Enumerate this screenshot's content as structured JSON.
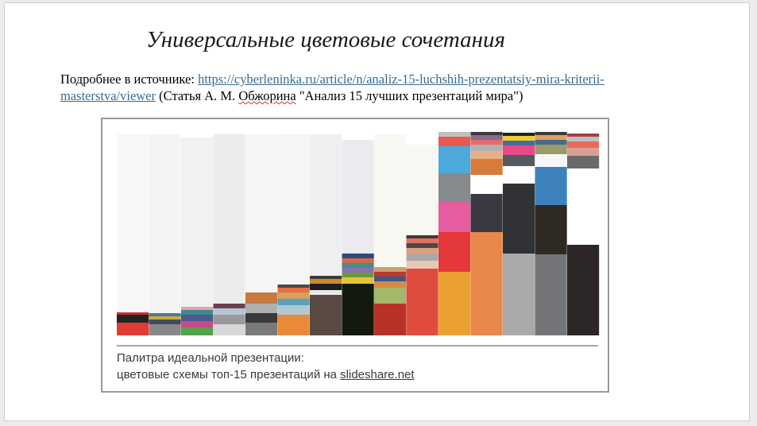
{
  "slide": {
    "title": "Универсальные цветовые сочетания",
    "source_prefix": "Подробнее в источнике: ",
    "source_link": "https://cyberleninka.ru/article/n/analiz-15-luchshih-prezentatsiy-mira-kriterii-masterstva/viewer",
    "source_suffix_a": " (Статья А. М. ",
    "source_author": "Обжорина",
    "source_suffix_b": " \"Анализ 15 лучших презентаций мира\")"
  },
  "figure": {
    "caption_line1": "Палитра идеальной презентации:",
    "caption_line2_prefix": "цветовые схемы топ-15 презентаций на ",
    "caption_line2_link": "slideshare.net"
  },
  "chart_data": {
    "type": "bar",
    "stacked": true,
    "note": "15 stacked colour palettes; each column lists colour bands from bottom to top with relative band heights",
    "columns": [
      {
        "bands": [
          {
            "color": "#e03c31",
            "h": 16
          },
          {
            "color": "#222222",
            "h": 10
          },
          {
            "color": "#c23030",
            "h": 3
          },
          {
            "color": "#f7f7f7",
            "h": 224
          }
        ]
      },
      {
        "bands": [
          {
            "color": "#888888",
            "h": 14
          },
          {
            "color": "#3f4b5a",
            "h": 6
          },
          {
            "color": "#d0a83a",
            "h": 4
          },
          {
            "color": "#4a7a9a",
            "h": 4
          },
          {
            "color": "#f4f4f4",
            "h": 225
          }
        ]
      },
      {
        "bands": [
          {
            "color": "#56a04a",
            "h": 10
          },
          {
            "color": "#c94a8a",
            "h": 8
          },
          {
            "color": "#4a5a8a",
            "h": 8
          },
          {
            "color": "#3e8a8a",
            "h": 6
          },
          {
            "color": "#e7a1b8",
            "h": 4
          },
          {
            "color": "#f1f1f1",
            "h": 213
          }
        ]
      },
      {
        "bands": [
          {
            "color": "#d8d8d8",
            "h": 14
          },
          {
            "color": "#9a9a9a",
            "h": 12
          },
          {
            "color": "#b7c4d4",
            "h": 8
          },
          {
            "color": "#6a4050",
            "h": 6
          },
          {
            "color": "#ececec",
            "h": 213
          }
        ]
      },
      {
        "bands": [
          {
            "color": "#7a7a7a",
            "h": 16
          },
          {
            "color": "#3a3a3a",
            "h": 12
          },
          {
            "color": "#b0b0b0",
            "h": 12
          },
          {
            "color": "#c47a40",
            "h": 14
          },
          {
            "color": "#f6f6f4",
            "h": 199
          }
        ]
      },
      {
        "bands": [
          {
            "color": "#e98a3a",
            "h": 26
          },
          {
            "color": "#b0c8d0",
            "h": 12
          },
          {
            "color": "#5aa0c0",
            "h": 8
          },
          {
            "color": "#d4a060",
            "h": 8
          },
          {
            "color": "#e46f3f",
            "h": 6
          },
          {
            "color": "#4a4a4a",
            "h": 4
          },
          {
            "color": "#f5f5f3",
            "h": 189
          }
        ]
      },
      {
        "bands": [
          {
            "color": "#5a4a44",
            "h": 51
          },
          {
            "color": "#e8e8e8",
            "h": 6
          },
          {
            "color": "#1d1d1d",
            "h": 8
          },
          {
            "color": "#c98a30",
            "h": 6
          },
          {
            "color": "#3a3a3a",
            "h": 4
          },
          {
            "color": "#efefef",
            "h": 178
          }
        ]
      },
      {
        "bands": [
          {
            "color": "#121a0e",
            "h": 65
          },
          {
            "color": "#e6c23a",
            "h": 8
          },
          {
            "color": "#6a9a3a",
            "h": 6
          },
          {
            "color": "#8a70b0",
            "h": 6
          },
          {
            "color": "#4a8a8a",
            "h": 6
          },
          {
            "color": "#d06a4a",
            "h": 6
          },
          {
            "color": "#2a4a7a",
            "h": 6
          },
          {
            "color": "#ebebef",
            "h": 143
          }
        ]
      },
      {
        "bands": [
          {
            "color": "#b83228",
            "h": 40
          },
          {
            "color": "#a3b86a",
            "h": 20
          },
          {
            "color": "#d88a4a",
            "h": 8
          },
          {
            "color": "#3a5a8a",
            "h": 6
          },
          {
            "color": "#b43c30",
            "h": 6
          },
          {
            "color": "#c8a070",
            "h": 6
          },
          {
            "color": "#f8f7f2",
            "h": 167
          }
        ]
      },
      {
        "bands": [
          {
            "color": "#e04c3e",
            "h": 84
          },
          {
            "color": "#e6c8b8",
            "h": 10
          },
          {
            "color": "#a8a8a8",
            "h": 8
          },
          {
            "color": "#d8a080",
            "h": 8
          },
          {
            "color": "#4a4a4a",
            "h": 6
          },
          {
            "color": "#e07060",
            "h": 6
          },
          {
            "color": "#3a3a3a",
            "h": 4
          },
          {
            "color": "#f8f7f2",
            "h": 114
          }
        ]
      },
      {
        "bands": [
          {
            "color": "#eba132",
            "h": 80
          },
          {
            "color": "#e4383b",
            "h": 50
          },
          {
            "color": "#e55c9f",
            "h": 38
          },
          {
            "color": "#868a8c",
            "h": 36
          },
          {
            "color": "#4ba9dc",
            "h": 34
          },
          {
            "color": "#e85a50",
            "h": 12
          },
          {
            "color": "#c0c0c0",
            "h": 6
          }
        ]
      },
      {
        "bands": [
          {
            "color": "#e8874a",
            "h": 130
          },
          {
            "color": "#3a3840",
            "h": 48
          },
          {
            "color": "#ffffff",
            "h": 24
          },
          {
            "color": "#d87a3a",
            "h": 20
          },
          {
            "color": "#e8b08a",
            "h": 10
          },
          {
            "color": "#b0b0b0",
            "h": 8
          },
          {
            "color": "#e86a6a",
            "h": 6
          },
          {
            "color": "#8a6a8a",
            "h": 6
          },
          {
            "color": "#3a3a3a",
            "h": 4
          }
        ]
      },
      {
        "bands": [
          {
            "color": "#aaaaaa",
            "h": 103
          },
          {
            "color": "#313236",
            "h": 88
          },
          {
            "color": "#ffffff",
            "h": 22
          },
          {
            "color": "#555a60",
            "h": 14
          },
          {
            "color": "#e84a88",
            "h": 12
          },
          {
            "color": "#4a6a9a",
            "h": 6
          },
          {
            "color": "#e8d03a",
            "h": 6
          },
          {
            "color": "#222222",
            "h": 4
          }
        ]
      },
      {
        "bands": [
          {
            "color": "#747578",
            "h": 102
          },
          {
            "color": "#2f2923",
            "h": 62
          },
          {
            "color": "#3d82bd",
            "h": 48
          },
          {
            "color": "#f7f7f7",
            "h": 16
          },
          {
            "color": "#9a9a6a",
            "h": 12
          },
          {
            "color": "#4a6a8a",
            "h": 6
          },
          {
            "color": "#e0a060",
            "h": 6
          },
          {
            "color": "#3a3a3a",
            "h": 4
          }
        ]
      },
      {
        "bands": [
          {
            "color": "#2c2627",
            "h": 114
          },
          {
            "color": "#ffffff",
            "h": 96
          },
          {
            "color": "#6a6a6a",
            "h": 16
          },
          {
            "color": "#d8a090",
            "h": 10
          },
          {
            "color": "#e86a5a",
            "h": 8
          },
          {
            "color": "#c0c0c0",
            "h": 6
          },
          {
            "color": "#a04040",
            "h": 4
          }
        ]
      }
    ]
  }
}
